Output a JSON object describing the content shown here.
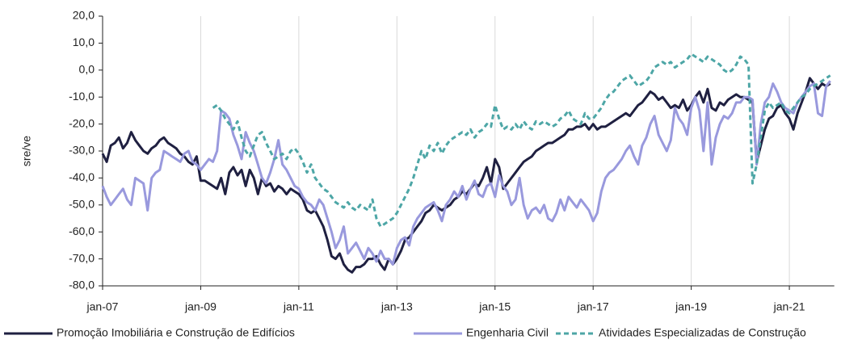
{
  "chart_data": {
    "type": "line",
    "y_label": "sre/ve",
    "ylim": [
      -80,
      20
    ],
    "yticks": [
      {
        "value": 20,
        "label": "20,0"
      },
      {
        "value": 10,
        "label": "10,0"
      },
      {
        "value": 0,
        "label": "0,0"
      },
      {
        "value": -10,
        "label": "-10,0"
      },
      {
        "value": -20,
        "label": "-20,0"
      },
      {
        "value": -30,
        "label": "-30,0"
      },
      {
        "value": -40,
        "label": "-40,0"
      },
      {
        "value": -50,
        "label": "-50,0"
      },
      {
        "value": -60,
        "label": "-60,0"
      },
      {
        "value": -70,
        "label": "-70,0"
      },
      {
        "value": -80,
        "label": "-80,0"
      }
    ],
    "grid": true,
    "legend": "bottom",
    "categories": [
      "jan-07",
      null,
      null,
      null,
      null,
      null,
      null,
      null,
      null,
      null,
      null,
      null,
      null,
      null,
      null,
      null,
      null,
      null,
      null,
      null,
      null,
      null,
      null,
      null,
      "jan-09",
      null,
      null,
      null,
      null,
      null,
      null,
      null,
      null,
      null,
      null,
      null,
      null,
      null,
      null,
      null,
      null,
      null,
      null,
      null,
      null,
      null,
      null,
      null,
      "jan-11",
      null,
      null,
      null,
      null,
      null,
      null,
      null,
      null,
      null,
      null,
      null,
      null,
      null,
      null,
      null,
      null,
      null,
      null,
      null,
      null,
      null,
      null,
      null,
      "jan-13",
      null,
      null,
      null,
      null,
      null,
      null,
      null,
      null,
      null,
      null,
      null,
      null,
      null,
      null,
      null,
      null,
      null,
      null,
      null,
      null,
      null,
      null,
      null,
      "jan-15",
      null,
      null,
      null,
      null,
      null,
      null,
      null,
      null,
      null,
      null,
      null,
      null,
      null,
      null,
      null,
      null,
      null,
      null,
      null,
      null,
      null,
      null,
      null,
      "jan-17",
      null,
      null,
      null,
      null,
      null,
      null,
      null,
      null,
      null,
      null,
      null,
      null,
      null,
      null,
      null,
      null,
      null,
      null,
      null,
      null,
      null,
      null,
      null,
      "jan-19",
      null,
      null,
      null,
      null,
      null,
      null,
      null,
      null,
      null,
      null,
      null,
      null,
      null,
      null,
      null,
      null,
      null,
      null,
      null,
      null,
      null,
      null,
      null,
      "jan-21",
      null,
      null,
      null,
      null,
      null,
      null,
      null,
      null,
      null,
      null
    ],
    "series": [
      {
        "name": "Promoção Imobiliária e Construção de Edifícios",
        "color": "#1f2041",
        "dashed": false,
        "values": [
          -31,
          -34,
          -28,
          -27,
          -25,
          -29,
          -27,
          -23,
          -26,
          -28,
          -30,
          -31,
          -29,
          -28,
          -26,
          -25,
          -27,
          -28,
          -29,
          -31,
          -32,
          -34,
          -35,
          -32,
          -41,
          -41,
          -42,
          -43,
          -44,
          -40,
          -46,
          -38,
          -36,
          -39,
          -37,
          -43,
          -37,
          -40,
          -46,
          -40,
          -43,
          -42,
          -45,
          -43,
          -44,
          -46,
          -44,
          -45,
          -46,
          -48,
          -52,
          -53,
          -52,
          -55,
          -58,
          -63,
          -69,
          -70,
          -68,
          -72,
          -74,
          -75,
          -73,
          -73,
          -72,
          -70,
          -70,
          -69,
          -72,
          -74,
          -70,
          -72,
          -70,
          -67,
          -63,
          -62,
          -60,
          -58,
          -56,
          -53,
          -52,
          -50,
          -51,
          -52,
          -51,
          -50,
          -48,
          -47,
          -45,
          -46,
          -44,
          -42,
          -43,
          -40,
          -36,
          -42,
          -33,
          -36,
          -44,
          -42,
          -40,
          -38,
          -36,
          -34,
          -33,
          -32,
          -30,
          -29,
          -28,
          -27,
          -27,
          -26,
          -25,
          -24,
          -22,
          -22,
          -21,
          -21,
          -20,
          -22,
          -20,
          -22,
          -21,
          -21,
          -20,
          -19,
          -18,
          -17,
          -16,
          -17,
          -15,
          -13,
          -12,
          -10,
          -8,
          -9,
          -11,
          -10,
          -12,
          -14,
          -13,
          -14,
          -11,
          -15,
          -13,
          -10,
          -8,
          -12,
          -7,
          -14,
          -15,
          -12,
          -13,
          -11,
          -10,
          -9,
          -10,
          -10,
          -11,
          -12,
          -34,
          -28,
          -22,
          -18,
          -17,
          -14,
          -13,
          -16,
          -18,
          -22,
          -16,
          -12,
          -8,
          -3,
          -5,
          -7,
          -5,
          -6,
          -5
        ]
      },
      {
        "name": "Engenharia Civil",
        "color": "#9999dd",
        "dashed": false,
        "values": [
          -43,
          -47,
          -50,
          -48,
          -46,
          -44,
          -48,
          -50,
          -40,
          -41,
          -42,
          -52,
          -40,
          -38,
          -37,
          -30,
          -31,
          -32,
          -33,
          -34,
          -31,
          -30,
          -34,
          -35,
          -37,
          -35,
          -33,
          -34,
          -30,
          -15,
          -16,
          -18,
          -24,
          -28,
          -33,
          -23,
          -27,
          -30,
          -35,
          -40,
          -42,
          -38,
          -33,
          -26,
          -35,
          -37,
          -40,
          -43,
          -44,
          -47,
          -49,
          -50,
          -52,
          -48,
          -50,
          -55,
          -60,
          -66,
          -63,
          -58,
          -68,
          -66,
          -64,
          -67,
          -70,
          -66,
          -68,
          -71,
          -67,
          -70,
          -70,
          -72,
          -66,
          -63,
          -62,
          -65,
          -58,
          -55,
          -53,
          -51,
          -50,
          -49,
          -52,
          -56,
          -50,
          -48,
          -45,
          -47,
          -43,
          -48,
          -44,
          -41,
          -46,
          -47,
          -43,
          -42,
          -47,
          -39,
          -43,
          -45,
          -50,
          -48,
          -40,
          -50,
          -55,
          -52,
          -51,
          -53,
          -50,
          -55,
          -56,
          -53,
          -48,
          -52,
          -47,
          -49,
          -51,
          -48,
          -50,
          -52,
          -56,
          -53,
          -45,
          -40,
          -38,
          -37,
          -35,
          -33,
          -30,
          -28,
          -32,
          -35,
          -28,
          -25,
          -20,
          -17,
          -24,
          -27,
          -30,
          -26,
          -14,
          -18,
          -20,
          -24,
          -14,
          -10,
          -15,
          -30,
          -12,
          -35,
          -25,
          -20,
          -17,
          -18,
          -16,
          -12,
          -12,
          -10,
          -10,
          -11,
          -35,
          -20,
          -12,
          -10,
          -5,
          -8,
          -12,
          -14,
          -15,
          -16,
          -12,
          -10,
          -8,
          -6,
          -5,
          -16,
          -17,
          -6,
          -4
        ]
      },
      {
        "name": "Atividades Especializadas de Construção",
        "color": "#4da6a6",
        "dashed": true,
        "values": [
          null,
          null,
          null,
          null,
          null,
          null,
          null,
          null,
          null,
          null,
          null,
          null,
          null,
          null,
          null,
          null,
          null,
          null,
          null,
          null,
          null,
          null,
          null,
          null,
          null,
          null,
          null,
          -14,
          -13,
          -15,
          -18,
          -20,
          -22,
          -19,
          -25,
          -30,
          -32,
          -28,
          -24,
          -23,
          -27,
          -30,
          -33,
          -32,
          -31,
          -33,
          -30,
          -29,
          -31,
          -34,
          -38,
          -35,
          -40,
          -42,
          -44,
          -45,
          -47,
          -49,
          -50,
          -51,
          -49,
          -51,
          -52,
          -50,
          -51,
          -52,
          -48,
          -55,
          -58,
          -57,
          -56,
          -55,
          -53,
          -50,
          -47,
          -44,
          -40,
          -35,
          -30,
          -33,
          -28,
          -30,
          -27,
          -31,
          -28,
          -26,
          -25,
          -24,
          -23,
          -24,
          -22,
          -25,
          -23,
          -22,
          -20,
          -21,
          -13,
          -18,
          -22,
          -21,
          -22,
          -20,
          -22,
          -19,
          -21,
          -22,
          -19,
          -20,
          -19,
          -20,
          -21,
          -20,
          -18,
          -17,
          -15,
          -18,
          -19,
          -20,
          -16,
          -18,
          -18,
          -16,
          -14,
          -11,
          -9,
          -8,
          -6,
          -4,
          -3,
          -2,
          -4,
          -6,
          -5,
          -4,
          -2,
          1,
          2,
          3,
          2,
          3,
          1,
          2,
          3,
          4,
          6,
          5,
          4,
          3,
          5,
          4,
          3,
          2,
          0,
          -1,
          0,
          2,
          5,
          4,
          2,
          -42,
          -35,
          -25,
          -15,
          -12,
          -14,
          -13,
          -12,
          -15,
          -16,
          -14,
          -12,
          -10,
          -9,
          -7,
          -6,
          -5,
          -4,
          -3,
          -2
        ]
      }
    ]
  }
}
